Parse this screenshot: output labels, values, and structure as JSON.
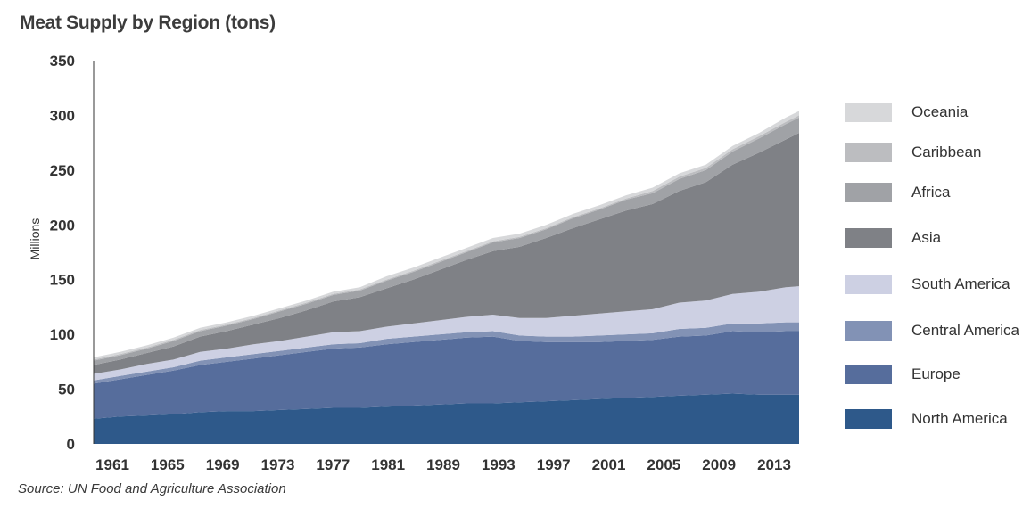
{
  "title": "Meat Supply by Region (tons)",
  "source": "Source: UN Food and Agriculture Association",
  "chart_data": {
    "type": "area",
    "stacked": true,
    "title": "Meat Supply by Region (tons)",
    "ylabel": "Millions",
    "xlabel": "",
    "ylim": [
      0,
      350
    ],
    "yticks": [
      0,
      50,
      100,
      150,
      200,
      250,
      300,
      350
    ],
    "xticks": [
      "1961",
      "1965",
      "1969",
      "1973",
      "1977",
      "1981",
      "1989",
      "1993",
      "1997",
      "2001",
      "2005",
      "2009",
      "2013"
    ],
    "x": [
      1961,
      1963,
      1965,
      1967,
      1969,
      1971,
      1973,
      1975,
      1977,
      1979,
      1981,
      1983,
      1985,
      1987,
      1989,
      1991,
      1993,
      1995,
      1997,
      1999,
      2001,
      2003,
      2005,
      2007,
      2009,
      2011,
      2013,
      2014
    ],
    "grid": false,
    "legend_position": "right",
    "series": [
      {
        "name": "North America",
        "color": "#2e598a",
        "values": [
          23,
          25,
          26,
          27,
          29,
          30,
          30,
          31,
          32,
          33,
          33,
          34,
          35,
          36,
          37,
          37,
          38,
          39,
          40,
          41,
          42,
          43,
          44,
          45,
          46,
          45,
          45,
          45
        ]
      },
      {
        "name": "Europe",
        "color": "#566d9c",
        "values": [
          32,
          34,
          37,
          40,
          43,
          45,
          48,
          50,
          52,
          54,
          55,
          57,
          58,
          59,
          60,
          61,
          56,
          54,
          53,
          52,
          52,
          52,
          54,
          54,
          57,
          57,
          58,
          58
        ]
      },
      {
        "name": "Central America",
        "color": "#8292b5",
        "values": [
          3,
          3,
          3,
          3,
          4,
          4,
          4,
          4,
          4,
          4,
          4,
          5,
          5,
          5,
          5,
          5,
          5,
          5,
          5,
          6,
          6,
          6,
          7,
          7,
          7,
          8,
          8,
          8
        ]
      },
      {
        "name": "South America",
        "color": "#cdd0e3",
        "values": [
          6,
          6,
          7,
          7,
          8,
          8,
          9,
          9,
          10,
          11,
          11,
          11,
          12,
          13,
          14,
          15,
          16,
          17,
          19,
          20,
          21,
          22,
          24,
          25,
          27,
          29,
          32,
          33
        ]
      },
      {
        "name": "Asia",
        "color": "#7f8186",
        "values": [
          8,
          9,
          10,
          12,
          14,
          16,
          18,
          21,
          24,
          28,
          31,
          35,
          40,
          46,
          52,
          58,
          65,
          73,
          80,
          86,
          92,
          96,
          102,
          108,
          118,
          127,
          135,
          140
        ]
      },
      {
        "name": "Africa",
        "color": "#a0a2a6",
        "values": [
          4,
          4,
          4,
          5,
          5,
          5,
          5,
          6,
          6,
          6,
          6,
          7,
          7,
          7,
          7,
          8,
          8,
          8,
          9,
          9,
          10,
          10,
          11,
          11,
          12,
          13,
          14,
          14
        ]
      },
      {
        "name": "Caribbean",
        "color": "#bcbdc0",
        "values": [
          1,
          1,
          1,
          1,
          1,
          1,
          1,
          1,
          1,
          1,
          1,
          1,
          1,
          1,
          1,
          1,
          1,
          1,
          1,
          1,
          1,
          2,
          2,
          2,
          2,
          2,
          2,
          2
        ]
      },
      {
        "name": "Oceania",
        "color": "#d7d8da",
        "values": [
          2,
          2,
          2,
          2,
          2,
          2,
          2,
          2,
          2,
          2,
          2,
          3,
          3,
          3,
          3,
          3,
          3,
          3,
          3,
          3,
          3,
          3,
          3,
          3,
          3,
          3,
          4,
          4
        ]
      }
    ]
  }
}
